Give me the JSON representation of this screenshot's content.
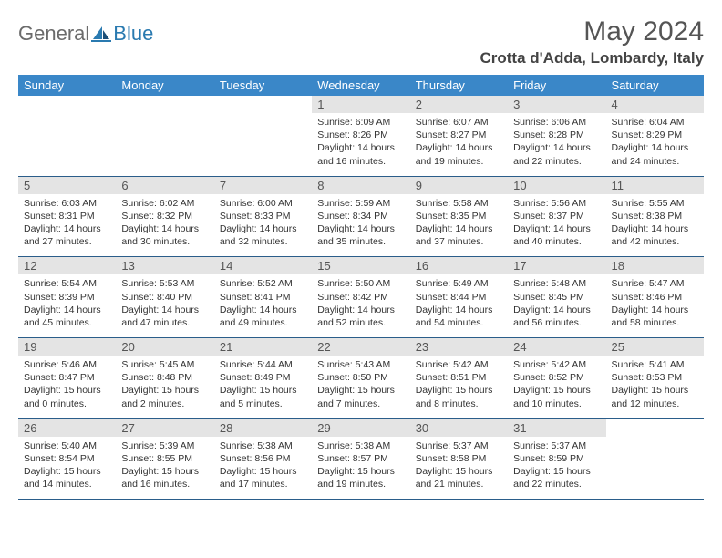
{
  "logo": {
    "textGeneral": "General",
    "textBlue": "Blue"
  },
  "title": "May 2024",
  "location": "Crotta d'Adda, Lombardy, Italy",
  "colors": {
    "headerBg": "#3a87c8",
    "headerText": "#ffffff",
    "dayNumBg": "#e4e4e4",
    "borderBottom": "#2a5d8a",
    "logoGray": "#6b6b6b",
    "logoBlue": "#2a7ab0"
  },
  "weekdays": [
    "Sunday",
    "Monday",
    "Tuesday",
    "Wednesday",
    "Thursday",
    "Friday",
    "Saturday"
  ],
  "weeks": [
    [
      {
        "n": "",
        "sr": "",
        "ss": "",
        "dl": ""
      },
      {
        "n": "",
        "sr": "",
        "ss": "",
        "dl": ""
      },
      {
        "n": "",
        "sr": "",
        "ss": "",
        "dl": ""
      },
      {
        "n": "1",
        "sr": "Sunrise: 6:09 AM",
        "ss": "Sunset: 8:26 PM",
        "dl": "Daylight: 14 hours and 16 minutes."
      },
      {
        "n": "2",
        "sr": "Sunrise: 6:07 AM",
        "ss": "Sunset: 8:27 PM",
        "dl": "Daylight: 14 hours and 19 minutes."
      },
      {
        "n": "3",
        "sr": "Sunrise: 6:06 AM",
        "ss": "Sunset: 8:28 PM",
        "dl": "Daylight: 14 hours and 22 minutes."
      },
      {
        "n": "4",
        "sr": "Sunrise: 6:04 AM",
        "ss": "Sunset: 8:29 PM",
        "dl": "Daylight: 14 hours and 24 minutes."
      }
    ],
    [
      {
        "n": "5",
        "sr": "Sunrise: 6:03 AM",
        "ss": "Sunset: 8:31 PM",
        "dl": "Daylight: 14 hours and 27 minutes."
      },
      {
        "n": "6",
        "sr": "Sunrise: 6:02 AM",
        "ss": "Sunset: 8:32 PM",
        "dl": "Daylight: 14 hours and 30 minutes."
      },
      {
        "n": "7",
        "sr": "Sunrise: 6:00 AM",
        "ss": "Sunset: 8:33 PM",
        "dl": "Daylight: 14 hours and 32 minutes."
      },
      {
        "n": "8",
        "sr": "Sunrise: 5:59 AM",
        "ss": "Sunset: 8:34 PM",
        "dl": "Daylight: 14 hours and 35 minutes."
      },
      {
        "n": "9",
        "sr": "Sunrise: 5:58 AM",
        "ss": "Sunset: 8:35 PM",
        "dl": "Daylight: 14 hours and 37 minutes."
      },
      {
        "n": "10",
        "sr": "Sunrise: 5:56 AM",
        "ss": "Sunset: 8:37 PM",
        "dl": "Daylight: 14 hours and 40 minutes."
      },
      {
        "n": "11",
        "sr": "Sunrise: 5:55 AM",
        "ss": "Sunset: 8:38 PM",
        "dl": "Daylight: 14 hours and 42 minutes."
      }
    ],
    [
      {
        "n": "12",
        "sr": "Sunrise: 5:54 AM",
        "ss": "Sunset: 8:39 PM",
        "dl": "Daylight: 14 hours and 45 minutes."
      },
      {
        "n": "13",
        "sr": "Sunrise: 5:53 AM",
        "ss": "Sunset: 8:40 PM",
        "dl": "Daylight: 14 hours and 47 minutes."
      },
      {
        "n": "14",
        "sr": "Sunrise: 5:52 AM",
        "ss": "Sunset: 8:41 PM",
        "dl": "Daylight: 14 hours and 49 minutes."
      },
      {
        "n": "15",
        "sr": "Sunrise: 5:50 AM",
        "ss": "Sunset: 8:42 PM",
        "dl": "Daylight: 14 hours and 52 minutes."
      },
      {
        "n": "16",
        "sr": "Sunrise: 5:49 AM",
        "ss": "Sunset: 8:44 PM",
        "dl": "Daylight: 14 hours and 54 minutes."
      },
      {
        "n": "17",
        "sr": "Sunrise: 5:48 AM",
        "ss": "Sunset: 8:45 PM",
        "dl": "Daylight: 14 hours and 56 minutes."
      },
      {
        "n": "18",
        "sr": "Sunrise: 5:47 AM",
        "ss": "Sunset: 8:46 PM",
        "dl": "Daylight: 14 hours and 58 minutes."
      }
    ],
    [
      {
        "n": "19",
        "sr": "Sunrise: 5:46 AM",
        "ss": "Sunset: 8:47 PM",
        "dl": "Daylight: 15 hours and 0 minutes."
      },
      {
        "n": "20",
        "sr": "Sunrise: 5:45 AM",
        "ss": "Sunset: 8:48 PM",
        "dl": "Daylight: 15 hours and 2 minutes."
      },
      {
        "n": "21",
        "sr": "Sunrise: 5:44 AM",
        "ss": "Sunset: 8:49 PM",
        "dl": "Daylight: 15 hours and 5 minutes."
      },
      {
        "n": "22",
        "sr": "Sunrise: 5:43 AM",
        "ss": "Sunset: 8:50 PM",
        "dl": "Daylight: 15 hours and 7 minutes."
      },
      {
        "n": "23",
        "sr": "Sunrise: 5:42 AM",
        "ss": "Sunset: 8:51 PM",
        "dl": "Daylight: 15 hours and 8 minutes."
      },
      {
        "n": "24",
        "sr": "Sunrise: 5:42 AM",
        "ss": "Sunset: 8:52 PM",
        "dl": "Daylight: 15 hours and 10 minutes."
      },
      {
        "n": "25",
        "sr": "Sunrise: 5:41 AM",
        "ss": "Sunset: 8:53 PM",
        "dl": "Daylight: 15 hours and 12 minutes."
      }
    ],
    [
      {
        "n": "26",
        "sr": "Sunrise: 5:40 AM",
        "ss": "Sunset: 8:54 PM",
        "dl": "Daylight: 15 hours and 14 minutes."
      },
      {
        "n": "27",
        "sr": "Sunrise: 5:39 AM",
        "ss": "Sunset: 8:55 PM",
        "dl": "Daylight: 15 hours and 16 minutes."
      },
      {
        "n": "28",
        "sr": "Sunrise: 5:38 AM",
        "ss": "Sunset: 8:56 PM",
        "dl": "Daylight: 15 hours and 17 minutes."
      },
      {
        "n": "29",
        "sr": "Sunrise: 5:38 AM",
        "ss": "Sunset: 8:57 PM",
        "dl": "Daylight: 15 hours and 19 minutes."
      },
      {
        "n": "30",
        "sr": "Sunrise: 5:37 AM",
        "ss": "Sunset: 8:58 PM",
        "dl": "Daylight: 15 hours and 21 minutes."
      },
      {
        "n": "31",
        "sr": "Sunrise: 5:37 AM",
        "ss": "Sunset: 8:59 PM",
        "dl": "Daylight: 15 hours and 22 minutes."
      },
      {
        "n": "",
        "sr": "",
        "ss": "",
        "dl": ""
      }
    ]
  ]
}
